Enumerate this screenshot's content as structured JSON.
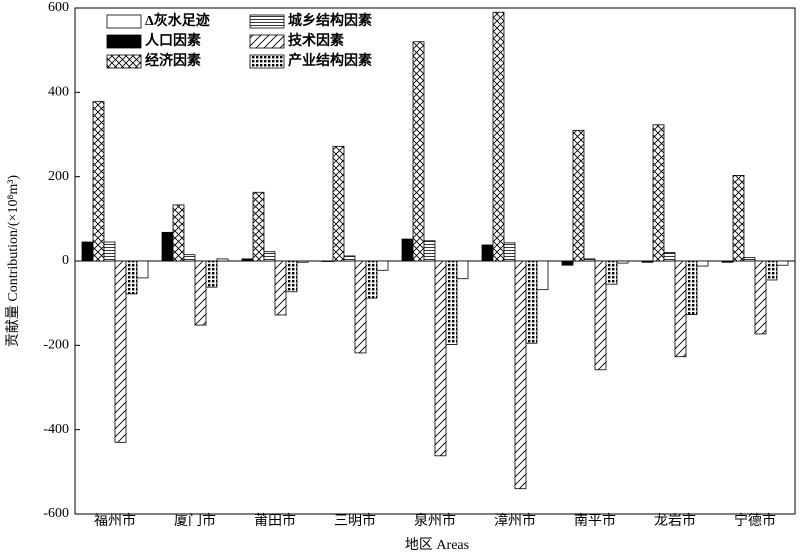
{
  "chart_data": {
    "type": "bar",
    "x_label": "地区 Areas",
    "y_label": "贡献量 Contribution/(×10⁸m³)",
    "categories": [
      "福州市",
      "厦门市",
      "莆田市",
      "三明市",
      "泉州市",
      "漳州市",
      "南平市",
      "龙岩市",
      "宁德市"
    ],
    "series": [
      {
        "name": "人口因素",
        "color": "#000000",
        "pattern": "solid",
        "values": [
          45,
          68,
          5,
          0,
          52,
          38,
          -10,
          -3,
          -3
        ]
      },
      {
        "name": "经济因素",
        "color": "#000000",
        "pattern": "crosshatch",
        "values": [
          378,
          133,
          163,
          272,
          520,
          590,
          310,
          323,
          203
        ]
      },
      {
        "name": "城乡结构因素",
        "color": "#000000",
        "pattern": "horizontal",
        "values": [
          45,
          15,
          22,
          12,
          48,
          43,
          5,
          20,
          8
        ]
      },
      {
        "name": "技术因素",
        "color": "#000000",
        "pattern": "diagonal",
        "values": [
          -430,
          -152,
          -128,
          -218,
          -462,
          -540,
          -258,
          -227,
          -173
        ]
      },
      {
        "name": "产业结构因素",
        "color": "#000000",
        "pattern": "checker",
        "values": [
          -78,
          -62,
          -73,
          -88,
          -198,
          -195,
          -55,
          -127,
          -45
        ]
      },
      {
        "name": "Δ灰水足迹",
        "color": "#000000",
        "pattern": "none",
        "values": [
          -40,
          5,
          -3,
          -22,
          -42,
          -68,
          -5,
          -12,
          -10
        ]
      }
    ],
    "ylim": [
      -600,
      600
    ],
    "yticks": [
      -600,
      -400,
      -200,
      0,
      200,
      400,
      600
    ]
  }
}
